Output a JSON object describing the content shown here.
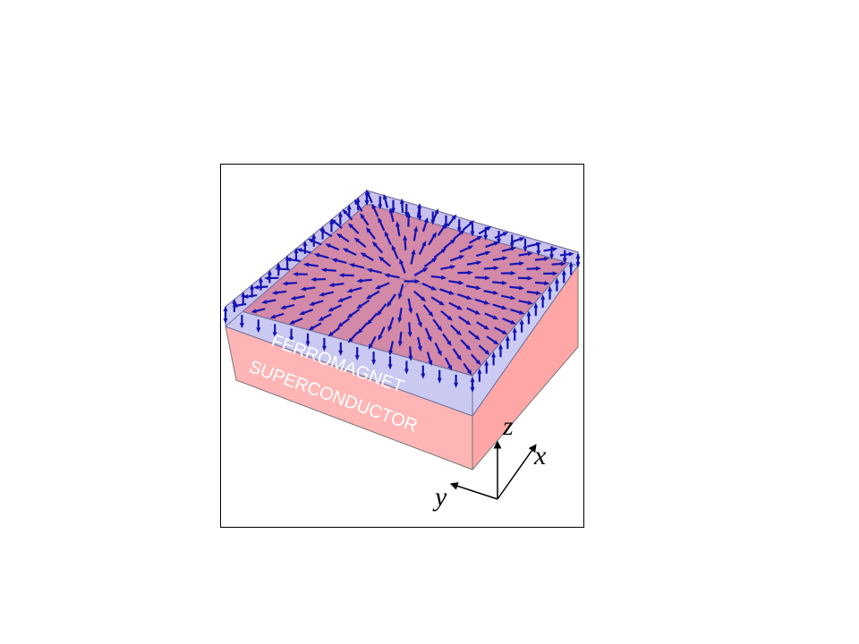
{
  "labels": {
    "ferromagnet": "FERROMAGNET",
    "superconductor": "SUPERCONDUCTOR"
  },
  "axes": {
    "x": "x",
    "y": "y",
    "z": "z"
  },
  "colors": {
    "superconductor_front": "#ffb6b6",
    "superconductor_side": "#ffa6a6",
    "superconductor_top": "#d98aa6",
    "ferromagnet_side": "#c9c9f2",
    "ferromagnet_front": "#c3c2ef",
    "arrow": "#1313b3",
    "edge": "#555555"
  },
  "arrow_icon": "arrow-icon"
}
